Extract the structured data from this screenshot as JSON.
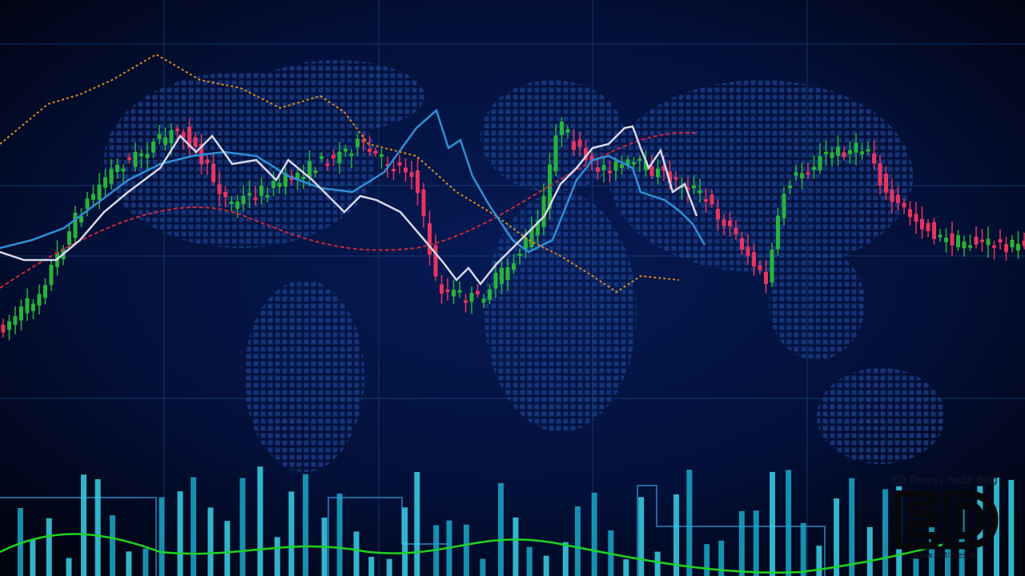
{
  "watermark": {
    "logo": "ED",
    "tagline": "ED Times | Youth Blog",
    "url": "www.edtimes.in"
  }
}
